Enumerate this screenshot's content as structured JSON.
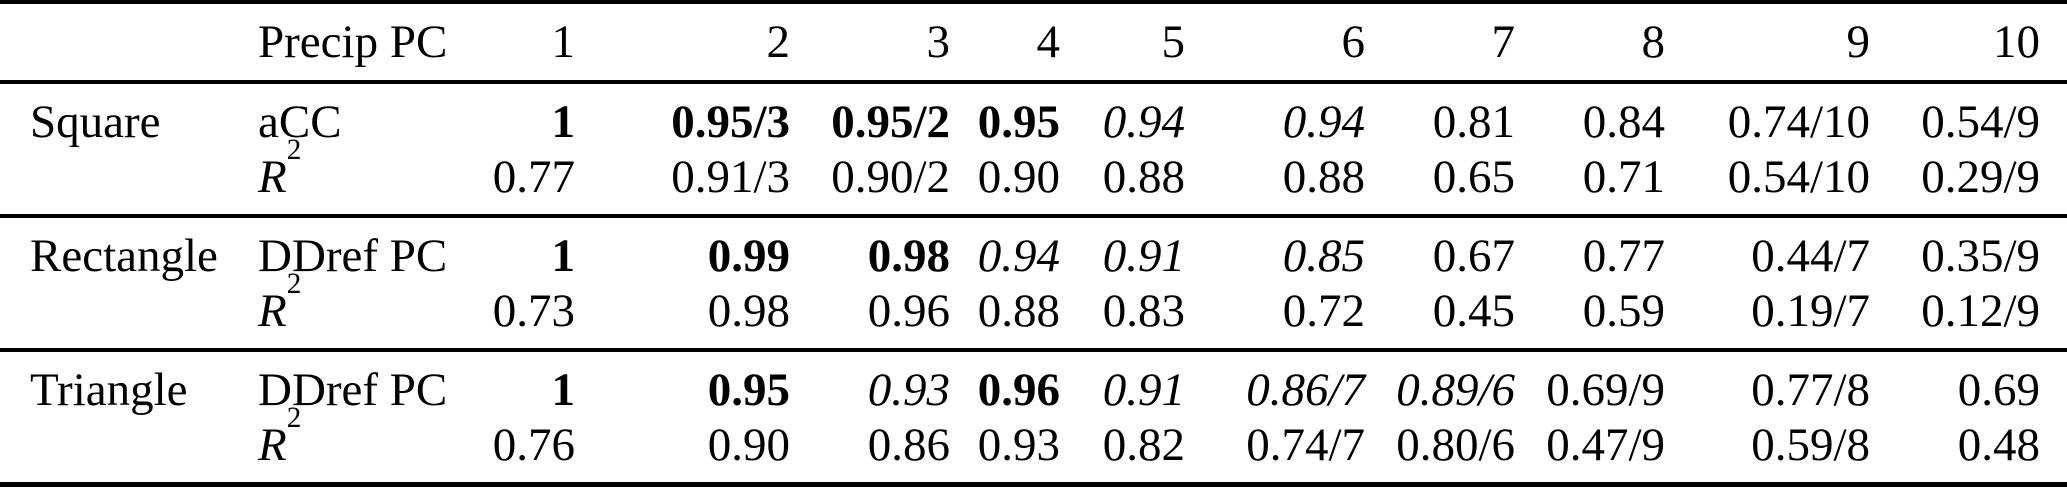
{
  "table": {
    "header_metric": "Precip PC",
    "pc_columns": [
      "1",
      "2",
      "3",
      "4",
      "5",
      "6",
      "7",
      "8",
      "9",
      "10"
    ],
    "groups": [
      {
        "label": "Square",
        "rows": [
          {
            "metric_base": "aCC",
            "metric_sup": "",
            "metric_italic": false,
            "cells": [
              {
                "v": "1",
                "style": "bold"
              },
              {
                "v": "0.95/3",
                "style": "bold"
              },
              {
                "v": "0.95/2",
                "style": "bold"
              },
              {
                "v": "0.95",
                "style": "bold"
              },
              {
                "v": "0.94",
                "style": "italic"
              },
              {
                "v": "0.94",
                "style": "italic"
              },
              {
                "v": "0.81",
                "style": "regular"
              },
              {
                "v": "0.84",
                "style": "regular"
              },
              {
                "v": "0.74/10",
                "style": "regular"
              },
              {
                "v": "0.54/9",
                "style": "regular"
              }
            ]
          },
          {
            "metric_base": "R",
            "metric_sup": "2",
            "metric_italic": true,
            "cells": [
              {
                "v": "0.77",
                "style": "regular"
              },
              {
                "v": "0.91/3",
                "style": "regular"
              },
              {
                "v": "0.90/2",
                "style": "regular"
              },
              {
                "v": "0.90",
                "style": "regular"
              },
              {
                "v": "0.88",
                "style": "regular"
              },
              {
                "v": "0.88",
                "style": "regular"
              },
              {
                "v": "0.65",
                "style": "regular"
              },
              {
                "v": "0.71",
                "style": "regular"
              },
              {
                "v": "0.54/10",
                "style": "regular"
              },
              {
                "v": "0.29/9",
                "style": "regular"
              }
            ]
          }
        ]
      },
      {
        "label": "Rectangle",
        "rows": [
          {
            "metric_base": "DDref PC",
            "metric_sup": "",
            "metric_italic": false,
            "cells": [
              {
                "v": "1",
                "style": "bold"
              },
              {
                "v": "0.99",
                "style": "bold"
              },
              {
                "v": "0.98",
                "style": "bold"
              },
              {
                "v": "0.94",
                "style": "italic"
              },
              {
                "v": "0.91",
                "style": "italic"
              },
              {
                "v": "0.85",
                "style": "italic"
              },
              {
                "v": "0.67",
                "style": "regular"
              },
              {
                "v": "0.77",
                "style": "regular"
              },
              {
                "v": "0.44/7",
                "style": "regular"
              },
              {
                "v": "0.35/9",
                "style": "regular"
              }
            ]
          },
          {
            "metric_base": "R",
            "metric_sup": "2",
            "metric_italic": true,
            "cells": [
              {
                "v": "0.73",
                "style": "regular"
              },
              {
                "v": "0.98",
                "style": "regular"
              },
              {
                "v": "0.96",
                "style": "regular"
              },
              {
                "v": "0.88",
                "style": "regular"
              },
              {
                "v": "0.83",
                "style": "regular"
              },
              {
                "v": "0.72",
                "style": "regular"
              },
              {
                "v": "0.45",
                "style": "regular"
              },
              {
                "v": "0.59",
                "style": "regular"
              },
              {
                "v": "0.19/7",
                "style": "regular"
              },
              {
                "v": "0.12/9",
                "style": "regular"
              }
            ]
          }
        ]
      },
      {
        "label": "Triangle",
        "rows": [
          {
            "metric_base": "DDref PC",
            "metric_sup": "",
            "metric_italic": false,
            "cells": [
              {
                "v": "1",
                "style": "bold"
              },
              {
                "v": "0.95",
                "style": "bold"
              },
              {
                "v": "0.93",
                "style": "italic"
              },
              {
                "v": "0.96",
                "style": "bold"
              },
              {
                "v": "0.91",
                "style": "italic"
              },
              {
                "v": "0.86/7",
                "style": "italic"
              },
              {
                "v": "0.89/6",
                "style": "italic"
              },
              {
                "v": "0.69/9",
                "style": "regular"
              },
              {
                "v": "0.77/8",
                "style": "regular"
              },
              {
                "v": "0.69",
                "style": "regular"
              }
            ]
          },
          {
            "metric_base": "R",
            "metric_sup": "2",
            "metric_italic": true,
            "cells": [
              {
                "v": "0.76",
                "style": "regular"
              },
              {
                "v": "0.90",
                "style": "regular"
              },
              {
                "v": "0.86",
                "style": "regular"
              },
              {
                "v": "0.93",
                "style": "regular"
              },
              {
                "v": "0.82",
                "style": "regular"
              },
              {
                "v": "0.74/7",
                "style": "regular"
              },
              {
                "v": "0.80/6",
                "style": "regular"
              },
              {
                "v": "0.47/9",
                "style": "regular"
              },
              {
                "v": "0.59/8",
                "style": "regular"
              },
              {
                "v": "0.48",
                "style": "regular"
              }
            ]
          }
        ]
      }
    ]
  }
}
